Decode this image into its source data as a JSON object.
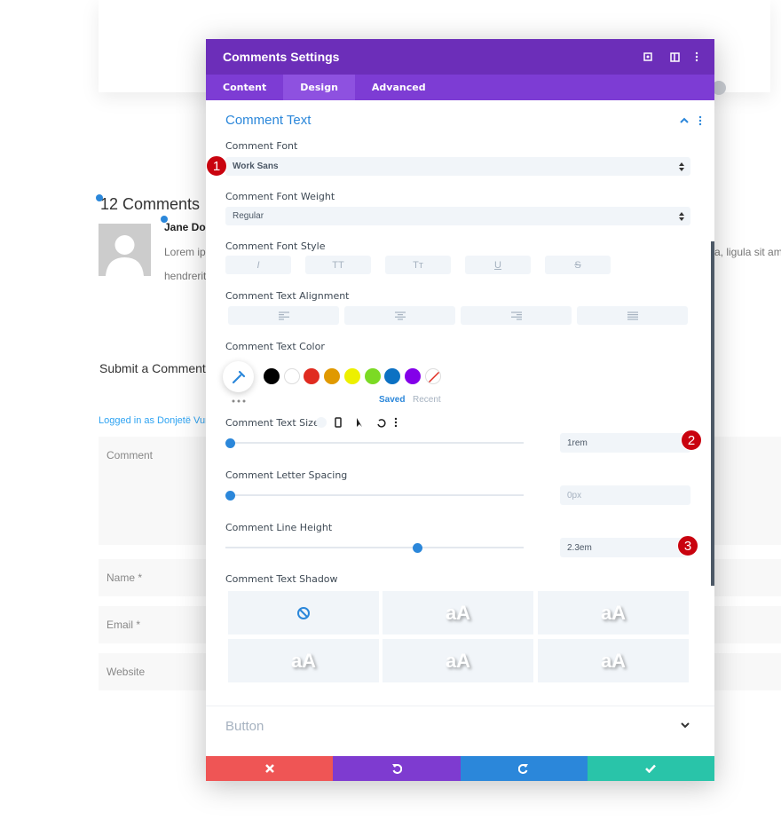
{
  "background": {
    "comments_title": "12 Comments",
    "author": "Jane Doe",
    "comment_line_1_left": "Lorem ips",
    "comment_line_1_right": "a, ligula sit ame",
    "comment_line_2": "hendrerit",
    "submit_title": "Submit a Comment",
    "logged_in": "Logged in as Donjetë Vun",
    "fields": [
      "Comment",
      "Name *",
      "Email *",
      "Website"
    ]
  },
  "panel": {
    "title": "Comments Settings",
    "tabs": [
      "Content",
      "Design",
      "Advanced"
    ],
    "active_tab": 1,
    "section": "Comment Text",
    "font": {
      "label": "Comment Font",
      "value": "Work Sans"
    },
    "weight": {
      "label": "Comment Font Weight",
      "value": "Regular"
    },
    "style": {
      "label": "Comment Font Style",
      "buttons": [
        "I",
        "TT",
        "Tт",
        "U",
        "S"
      ]
    },
    "alignment": {
      "label": "Comment Text Alignment"
    },
    "color": {
      "label": "Comment Text Color",
      "saved": "Saved",
      "recent": "Recent"
    },
    "size": {
      "label": "Comment Text Size",
      "value": "1rem"
    },
    "letter_spacing": {
      "label": "Comment Letter Spacing",
      "value": "0px"
    },
    "line_height": {
      "label": "Comment Line Height",
      "value": "2.3em"
    },
    "shadow": {
      "label": "Comment Text Shadow",
      "presets": [
        "aA",
        "aA",
        "aA",
        "aA",
        "aA"
      ]
    },
    "next_section": "Button"
  },
  "badges": [
    "1",
    "2",
    "3"
  ]
}
